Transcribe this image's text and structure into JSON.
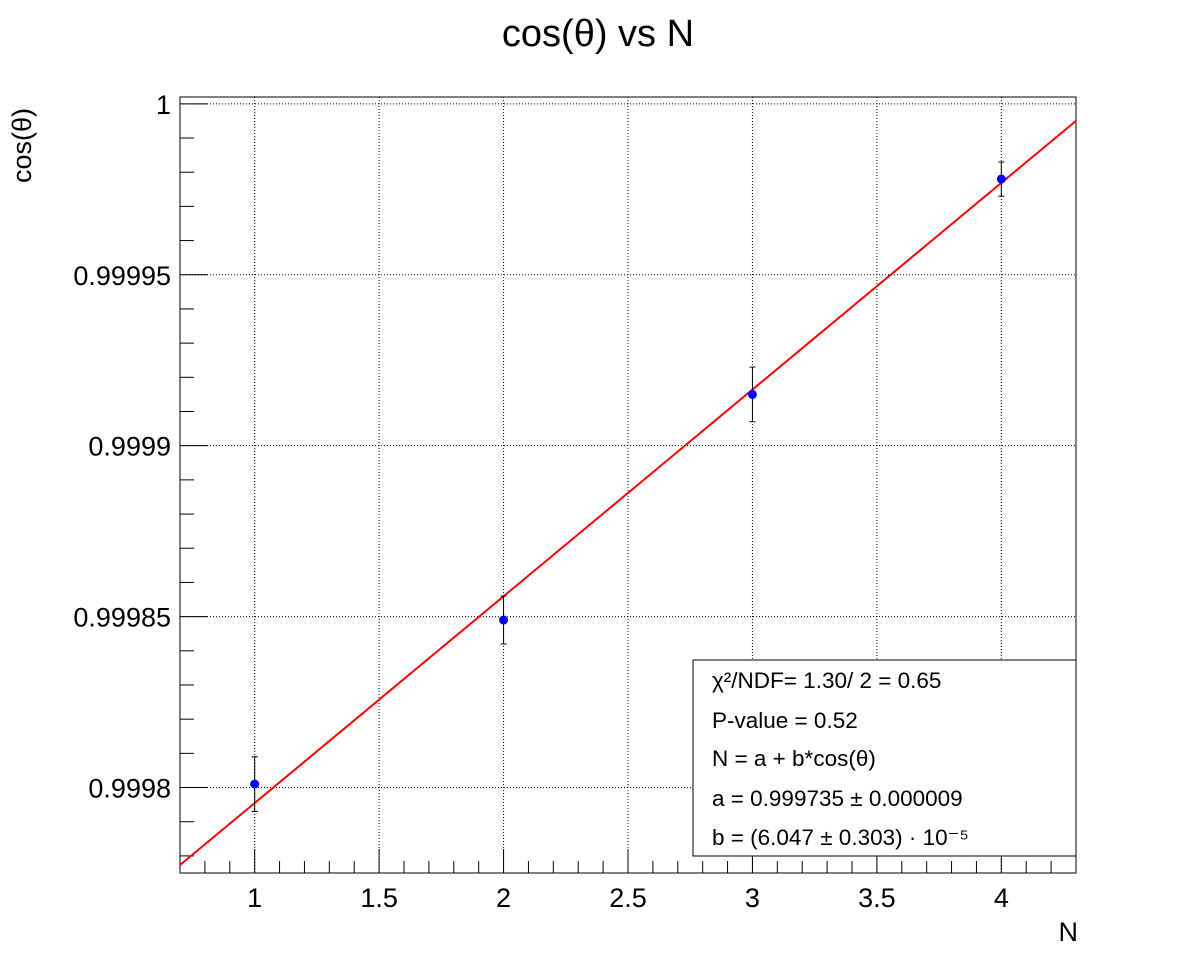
{
  "chart_data": {
    "type": "scatter",
    "title": "cos(θ) vs N",
    "xlabel": "N",
    "ylabel": "cos(θ)",
    "xlim": [
      0.7,
      4.3
    ],
    "ylim": [
      0.999775,
      1.000002
    ],
    "grid": true,
    "x_ticks": [
      1,
      1.5,
      2,
      2.5,
      3,
      3.5,
      4
    ],
    "x_tick_labels": [
      "1",
      "1.5",
      "2",
      "2.5",
      "3",
      "3.5",
      "4"
    ],
    "y_ticks": [
      0.9998,
      0.99985,
      0.9999,
      0.99995,
      1
    ],
    "y_tick_labels": [
      "0.9998",
      "0.99985",
      "0.9999",
      "0.99995",
      "1"
    ],
    "series": [
      {
        "name": "data",
        "color": "#0000ff",
        "error_color": "#000000",
        "x": [
          1,
          2,
          3,
          4
        ],
        "y": [
          0.999801,
          0.999849,
          0.999915,
          0.999978
        ],
        "y_err": [
          8e-06,
          7e-06,
          8e-06,
          5e-06
        ]
      }
    ],
    "fit": {
      "name": "fit",
      "color": "#ff0000",
      "intercept": 0.999735,
      "slope": 6.047e-05,
      "x_range": [
        0.7,
        4.3
      ]
    },
    "stats_box": {
      "position": "bottom-right",
      "lines": [
        "χ²/NDF= 1.30/ 2 = 0.65",
        "P-value = 0.52",
        "N = a + b*cos(θ)",
        "a = 0.999735 ± 0.000009",
        "b = (6.047 ± 0.303) · 10⁻⁵"
      ]
    }
  }
}
